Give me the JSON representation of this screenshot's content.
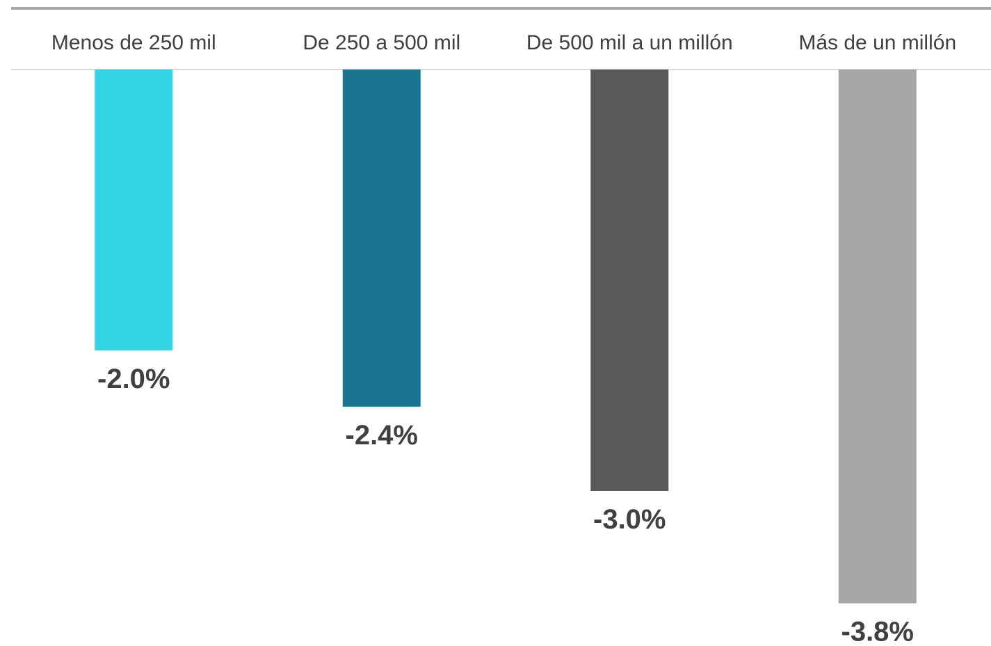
{
  "chart_data": {
    "type": "bar",
    "orientation": "vertical",
    "title": "",
    "xlabel": "",
    "ylabel": "",
    "categories": [
      "Menos de 250 mil",
      "De 250 a 500 mil",
      "De 500 mil a un millón",
      "Más de un millón"
    ],
    "values": [
      -2.0,
      -2.4,
      -3.0,
      -3.8
    ],
    "value_labels": [
      "-2.0%",
      "-2.4%",
      "-3.0%",
      "-3.8%"
    ],
    "colors": [
      "#31D3E5",
      "#1A7591",
      "#595959",
      "#A6A6A6"
    ],
    "ylim": [
      -4.0,
      0
    ],
    "category_axis_position": "top",
    "grid": false,
    "legend": "none"
  }
}
